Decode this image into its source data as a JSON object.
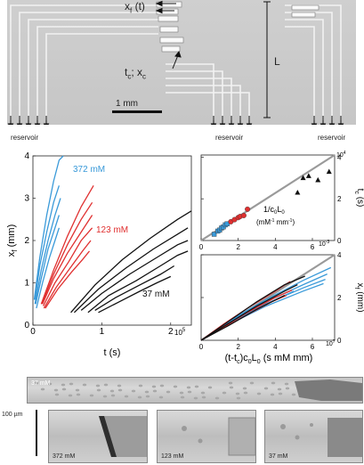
{
  "micrograph": {
    "label_front": "x",
    "label_front_sub": "f",
    "label_front_arg": "(t)",
    "label_crit": "t",
    "label_crit_sub": "c",
    "label_crit_x": "; x",
    "label_crit_x_sub": "c",
    "length_label": "L",
    "scale_label": "1 mm",
    "reservoir_labels": [
      "reservoir",
      "reservoir",
      "reservoir"
    ]
  },
  "chart_data": [
    {
      "id": "main",
      "type": "line",
      "xlabel": "t (s)",
      "ylabel": "x",
      "ylabel_sub": "f",
      "ylabel_unit": "(mm)",
      "xlim": [
        0,
        2.3
      ],
      "ylim": [
        0,
        4
      ],
      "x_ticks": [
        "0",
        "1",
        "2"
      ],
      "x_exp": "10",
      "x_exp_power": "5",
      "y_ticks": [
        "0",
        "1",
        "2",
        "3",
        "4"
      ],
      "groups": [
        {
          "name": "372 mM",
          "color": "#3a9ad9",
          "series": [
            {
              "x": [
                0.02,
                0.1,
                0.2,
                0.3,
                0.38,
                0.44
              ],
              "y": [
                0.6,
                1.6,
                2.6,
                3.4,
                3.9,
                4.0
              ]
            },
            {
              "x": [
                0.03,
                0.1,
                0.2,
                0.3,
                0.38
              ],
              "y": [
                0.6,
                1.4,
                2.2,
                2.9,
                3.3
              ]
            },
            {
              "x": [
                0.03,
                0.12,
                0.22,
                0.32,
                0.4
              ],
              "y": [
                0.5,
                1.3,
                2.0,
                2.6,
                3.0
              ]
            },
            {
              "x": [
                0.04,
                0.12,
                0.22,
                0.32,
                0.38
              ],
              "y": [
                0.5,
                1.1,
                1.8,
                2.3,
                2.6
              ]
            },
            {
              "x": [
                0.05,
                0.14,
                0.24,
                0.32,
                0.38
              ],
              "y": [
                0.4,
                1.0,
                1.6,
                2.0,
                2.3
              ]
            }
          ]
        },
        {
          "name": "123 mM",
          "color": "#e03030",
          "series": [
            {
              "x": [
                0.12,
                0.3,
                0.5,
                0.7,
                0.88
              ],
              "y": [
                0.5,
                1.3,
                2.1,
                2.8,
                3.3
              ]
            },
            {
              "x": [
                0.13,
                0.3,
                0.5,
                0.7,
                0.86
              ],
              "y": [
                0.5,
                1.2,
                1.9,
                2.5,
                2.9
              ]
            },
            {
              "x": [
                0.14,
                0.3,
                0.5,
                0.7,
                0.86
              ],
              "y": [
                0.5,
                1.1,
                1.7,
                2.2,
                2.6
              ]
            },
            {
              "x": [
                0.15,
                0.32,
                0.52,
                0.7,
                0.86
              ],
              "y": [
                0.45,
                1.0,
                1.5,
                2.0,
                2.3
              ]
            },
            {
              "x": [
                0.16,
                0.34,
                0.54,
                0.72,
                0.84
              ],
              "y": [
                0.4,
                0.9,
                1.35,
                1.75,
                2.0
              ]
            },
            {
              "x": [
                0.18,
                0.36,
                0.56,
                0.72,
                0.82
              ],
              "y": [
                0.4,
                0.85,
                1.25,
                1.55,
                1.75
              ]
            }
          ]
        },
        {
          "name": "37 mM",
          "color": "#111111",
          "series": [
            {
              "x": [
                0.55,
                0.9,
                1.3,
                1.7,
                2.1,
                2.3
              ],
              "y": [
                0.3,
                0.95,
                1.55,
                2.05,
                2.5,
                2.7
              ]
            },
            {
              "x": [
                0.6,
                0.95,
                1.35,
                1.75,
                2.1,
                2.25
              ],
              "y": [
                0.3,
                0.85,
                1.35,
                1.8,
                2.15,
                2.3
              ]
            },
            {
              "x": [
                0.7,
                1.0,
                1.4,
                1.8,
                2.1,
                2.25
              ],
              "y": [
                0.35,
                0.75,
                1.2,
                1.6,
                1.9,
                2.0
              ]
            },
            {
              "x": [
                0.8,
                1.1,
                1.5,
                1.85,
                2.1,
                2.25
              ],
              "y": [
                0.3,
                0.7,
                1.05,
                1.4,
                1.65,
                1.75
              ]
            },
            {
              "x": [
                0.9,
                1.2,
                1.55,
                1.85,
                2.05
              ],
              "y": [
                0.35,
                0.65,
                0.95,
                1.2,
                1.4
              ]
            },
            {
              "x": [
                0.95,
                1.25,
                1.55,
                1.8,
                2.0
              ],
              "y": [
                0.3,
                0.55,
                0.8,
                1.0,
                1.15
              ]
            }
          ]
        }
      ]
    },
    {
      "id": "tc",
      "type": "scatter",
      "ylabel": "t",
      "ylabel_sub": "c",
      "ylabel_unit": "(s)",
      "annotation_line1": "1/c",
      "annotation_line1_sub": "0",
      "annotation_line1_tail": "L",
      "annotation_line1_tail_sub": "0",
      "annotation_line2": "(mM",
      "annotation_line2_sup": "-1",
      "annotation_line2_mid": " mm",
      "annotation_line2_sup2": "-1",
      "annotation_line2_tail": ")",
      "xlim": [
        0,
        7.2
      ],
      "ylim": [
        0,
        4.1
      ],
      "x_ticks": [
        "0",
        "2",
        "4",
        "6"
      ],
      "x_exp": "10",
      "x_exp_power": "-3",
      "y_ticks": [
        "0",
        "2",
        "4"
      ],
      "y_exp": "10",
      "y_exp_power": "4",
      "fit_line": {
        "x": [
          0,
          7.2
        ],
        "y": [
          0,
          4.1
        ]
      },
      "groups": [
        {
          "name": "372 mM",
          "color": "#3a9ad9",
          "marker": "square",
          "points": {
            "x": [
              0.7,
              0.9,
              1.0,
              1.1,
              1.2,
              1.3,
              1.4
            ],
            "y": [
              0.3,
              0.45,
              0.5,
              0.6,
              0.65,
              0.75,
              0.8
            ]
          }
        },
        {
          "name": "123 mM",
          "color": "#e03030",
          "marker": "circle",
          "points": {
            "x": [
              1.6,
              1.8,
              2.0,
              2.1,
              2.3,
              2.5
            ],
            "y": [
              0.9,
              1.0,
              1.1,
              1.15,
              1.2,
              1.5
            ]
          }
        },
        {
          "name": "37 mM",
          "color": "#111111",
          "marker": "triangle",
          "points": {
            "x": [
              5.2,
              5.5,
              5.8,
              6.3,
              6.9
            ],
            "y": [
              2.3,
              3.0,
              3.1,
              2.9,
              3.3
            ]
          }
        }
      ]
    },
    {
      "id": "collapse",
      "type": "line",
      "xlabel": "(t-t",
      "xlabel_sub": "c",
      "xlabel_mid": ")c",
      "xlabel_sub2": "0",
      "xlabel_mid2": "L",
      "xlabel_sub3": "0",
      "xlabel_tail": " (s mM mm)",
      "ylabel": "x",
      "ylabel_sub": "f",
      "ylabel_unit": "(mm)",
      "xlim": [
        0,
        7.2
      ],
      "ylim": [
        0,
        4
      ],
      "x_ticks": [
        "0",
        "2",
        "4",
        "6"
      ],
      "x_exp": "10",
      "x_exp_power": "7",
      "y_ticks": [
        "0",
        "2",
        "4"
      ],
      "fit_line": {
        "x": [
          0,
          7.2
        ],
        "y": [
          0,
          4.0
        ]
      },
      "groups": [
        {
          "name": "372 mM",
          "color": "#3a9ad9",
          "series": [
            {
              "x": [
                0,
                1.5,
                3.5,
                5.5,
                7.0
              ],
              "y": [
                0,
                0.9,
                1.9,
                2.8,
                3.4
              ]
            },
            {
              "x": [
                0,
                1.5,
                3.5,
                5.5,
                6.8
              ],
              "y": [
                0,
                0.85,
                1.8,
                2.6,
                3.1
              ]
            },
            {
              "x": [
                0,
                1.5,
                3.5,
                5.5,
                6.7
              ],
              "y": [
                0,
                0.8,
                1.7,
                2.45,
                2.85
              ]
            },
            {
              "x": [
                0,
                1.5,
                3.5,
                5.5,
                6.6
              ],
              "y": [
                0,
                0.75,
                1.6,
                2.3,
                2.65
              ]
            },
            {
              "x": [
                0,
                1.5,
                3.5,
                5.0
              ],
              "y": [
                0,
                0.8,
                1.7,
                2.3
              ]
            }
          ]
        },
        {
          "name": "123 mM",
          "color": "#e03030",
          "series": [
            {
              "x": [
                0,
                1.2,
                2.5,
                4.0,
                4.8
              ],
              "y": [
                0,
                0.75,
                1.5,
                2.3,
                2.75
              ]
            },
            {
              "x": [
                0,
                1.2,
                2.5,
                4.0,
                4.9
              ],
              "y": [
                0,
                0.65,
                1.3,
                2.0,
                2.35
              ]
            },
            {
              "x": [
                0,
                1.2,
                2.5,
                3.8,
                4.6
              ],
              "y": [
                0,
                0.6,
                1.2,
                1.8,
                2.1
              ]
            }
          ]
        },
        {
          "name": "37 mM",
          "color": "#111111",
          "series": [
            {
              "x": [
                0,
                1.5,
                3.0,
                4.5,
                5.6
              ],
              "y": [
                0,
                0.9,
                1.8,
                2.6,
                3.0
              ]
            },
            {
              "x": [
                0,
                1.5,
                3.0,
                4.5,
                5.2
              ],
              "y": [
                0,
                0.8,
                1.6,
                2.3,
                2.6
              ]
            },
            {
              "x": [
                0,
                1.5,
                3.0,
                4.5
              ],
              "y": [
                0,
                0.7,
                1.45,
                2.1
              ]
            }
          ]
        }
      ]
    }
  ],
  "series_labels": {
    "high": "372 mM",
    "mid": "123 mM",
    "low": "37 mM",
    "high_color": "#3a9ad9",
    "mid_color": "#e03030",
    "low_color": "#111111"
  },
  "bottom": {
    "strip_label": "37 mM",
    "scale_label": "100 µm",
    "photos": [
      "372 mM",
      "123 mM",
      "37 mM"
    ]
  }
}
